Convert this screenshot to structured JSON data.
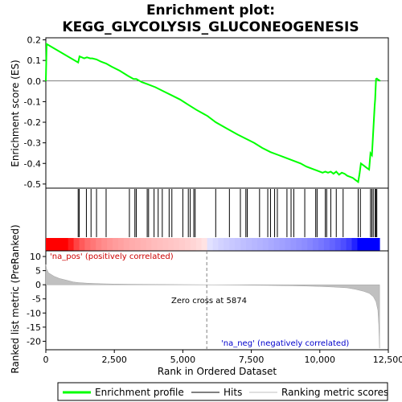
{
  "chart_data": {
    "type": "line",
    "title_line1": "Enrichment plot:",
    "title_line2": "KEGG_GLYCOLYSIS_GLUCONEOGENESIS",
    "es_panel": {
      "ylabel": "Enrichment score (ES)",
      "ylim": [
        -0.52,
        0.21
      ],
      "yticks": [
        0.2,
        0.1,
        0.0,
        -0.1,
        -0.2,
        -0.3,
        -0.4,
        -0.5
      ],
      "ytick_labels": [
        "0.2",
        "0.1",
        "0.0",
        "-0.1",
        "-0.2",
        "-0.3",
        "-0.4",
        "-0.5"
      ],
      "series_name": "Enrichment profile",
      "color": "#00ff00",
      "x": [
        0,
        30,
        1180,
        1230,
        1400,
        1500,
        1620,
        1700,
        1850,
        2000,
        2200,
        2400,
        2700,
        3000,
        3200,
        3300,
        3500,
        3700,
        4000,
        4300,
        4600,
        4900,
        5200,
        5500,
        5900,
        6200,
        6600,
        7000,
        7300,
        7600,
        7900,
        8200,
        8500,
        8700,
        9000,
        9300,
        9500,
        9800,
        9900,
        10100,
        10200,
        10300,
        10400,
        10500,
        10600,
        10700,
        10800,
        10900,
        11000,
        11200,
        11300,
        11400,
        11450,
        11500,
        11600,
        11700,
        11800,
        11850,
        11900,
        11950,
        12000,
        12020,
        12050,
        12080,
        12110,
        12150,
        12200
      ],
      "y": [
        0.0,
        0.18,
        0.09,
        0.12,
        0.11,
        0.115,
        0.11,
        0.11,
        0.105,
        0.095,
        0.085,
        0.07,
        0.05,
        0.025,
        0.01,
        0.01,
        -0.005,
        -0.015,
        -0.03,
        -0.05,
        -0.07,
        -0.09,
        -0.115,
        -0.14,
        -0.17,
        -0.2,
        -0.23,
        -0.26,
        -0.28,
        -0.3,
        -0.325,
        -0.345,
        -0.36,
        -0.37,
        -0.385,
        -0.4,
        -0.415,
        -0.43,
        -0.435,
        -0.445,
        -0.44,
        -0.445,
        -0.44,
        -0.45,
        -0.44,
        -0.455,
        -0.445,
        -0.45,
        -0.46,
        -0.47,
        -0.48,
        -0.49,
        -0.45,
        -0.4,
        -0.41,
        -0.42,
        -0.43,
        -0.35,
        -0.36,
        -0.24,
        -0.12,
        -0.09,
        0.01,
        0.012,
        0.008,
        0.005,
        0.0
      ]
    },
    "hits": {
      "series_name": "Hits",
      "positions": [
        1180,
        1220,
        1480,
        1650,
        1850,
        2200,
        3050,
        3250,
        3300,
        3700,
        3750,
        3950,
        4100,
        4250,
        4500,
        4600,
        5000,
        5200,
        5270,
        5400,
        5450,
        6200,
        6700,
        7100,
        7300,
        7350,
        7800,
        8100,
        8200,
        8350,
        8450,
        8800,
        8950,
        9050,
        9450,
        9850,
        9900,
        10200,
        10250,
        10400,
        10600,
        10850,
        11400,
        11480,
        11850,
        11900,
        11950,
        12020,
        12050,
        12080
      ]
    },
    "rank_panel": {
      "ylabel": "Ranked list metric (PreRanked)",
      "xlabel": "Rank in Ordered Dataset",
      "ylim": [
        -23,
        12
      ],
      "yticks": [
        10,
        5,
        0,
        -5,
        -10,
        -15,
        -20
      ],
      "ytick_labels": [
        "10",
        "5",
        "0",
        "-5",
        "-10",
        "-15",
        "-20"
      ],
      "xlim": [
        0,
        12500
      ],
      "xticks": [
        0,
        2500,
        5000,
        7500,
        10000,
        12500
      ],
      "xtick_labels": [
        "0",
        "2,500",
        "5,000",
        "7,500",
        "10,000",
        "12,500"
      ],
      "series_name": "Ranking metric scores",
      "x": [
        0,
        30,
        100,
        300,
        500,
        800,
        1000,
        1200,
        1500,
        2000,
        2500,
        3000,
        4000,
        5000,
        5874,
        7000,
        8000,
        9000,
        9500,
        10000,
        10500,
        11000,
        11300,
        11600,
        11800,
        11950,
        12050,
        12120,
        12150,
        12180
      ],
      "y": [
        7.2,
        5.5,
        4.2,
        3.0,
        2.2,
        1.5,
        1.0,
        0.75,
        0.55,
        0.35,
        0.25,
        0.18,
        0.1,
        0.05,
        0.0,
        -0.1,
        -0.2,
        -0.35,
        -0.45,
        -0.6,
        -0.8,
        -1.1,
        -1.6,
        -2.3,
        -3.0,
        -4.2,
        -6.0,
        -9.0,
        -14.0,
        -22.5
      ],
      "zero_cross_label": "Zero cross at 5874",
      "zero_cross": 5874,
      "pos_label": "'na_pos' (positively correlated)",
      "neg_label": "'na_neg' (negatively correlated)"
    },
    "legend": [
      {
        "label": "Enrichment profile",
        "color": "#00ff00"
      },
      {
        "label": "Hits",
        "color": "#000000"
      },
      {
        "label": "Ranking metric scores",
        "color": "#c0c0c0"
      }
    ]
  }
}
